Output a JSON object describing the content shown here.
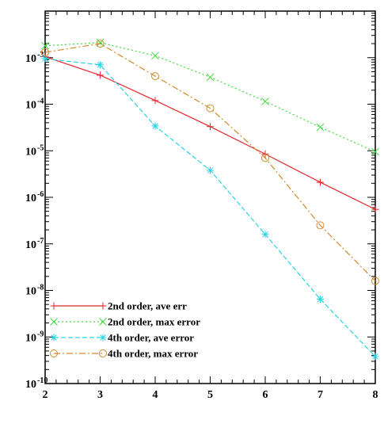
{
  "chart_data": {
    "type": "line",
    "title": "",
    "xlabel": "",
    "ylabel": "",
    "x": [
      2,
      3,
      4,
      5,
      6,
      7,
      8
    ],
    "xlim": [
      2,
      8
    ],
    "ylim": [
      1e-10,
      0.01
    ],
    "yscale": "log",
    "grid": false,
    "legend_position": "bottom-left",
    "x_ticks": [
      "2",
      "3",
      "4",
      "5",
      "6",
      "7",
      "8"
    ],
    "y_ticks": [
      {
        "base": "10",
        "exp": "-10",
        "value": 1e-10
      },
      {
        "base": "10",
        "exp": "-9",
        "value": 1e-09
      },
      {
        "base": "10",
        "exp": "-8",
        "value": 1e-08
      },
      {
        "base": "10",
        "exp": "-7",
        "value": 1e-07
      },
      {
        "base": "10",
        "exp": "-6",
        "value": 1e-06
      },
      {
        "base": "10",
        "exp": "-5",
        "value": 1e-05
      },
      {
        "base": "10",
        "exp": "-4",
        "value": 0.0001
      },
      {
        "base": "10",
        "exp": "-3",
        "value": 0.001
      }
    ],
    "series": [
      {
        "name": "2nd order, ave err",
        "color": "#e8252a",
        "dash": "",
        "marker": "plus",
        "values": [
          0.00105,
          0.00042,
          0.00012,
          3.3e-05,
          8.5e-06,
          2.1e-06,
          5.5e-07
        ]
      },
      {
        "name": "2nd order, max error",
        "color": "#3ddc3d",
        "dash": "2,3",
        "marker": "x",
        "values": [
          0.0018,
          0.0021,
          0.0011,
          0.00038,
          0.000115,
          3.2e-05,
          9.5e-06
        ]
      },
      {
        "name": "4th order, ave error",
        "color": "#27d3e6",
        "dash": "6,3",
        "marker": "star",
        "values": [
          0.00095,
          0.0007,
          3.4e-05,
          3.8e-06,
          1.6e-07,
          6.5e-09,
          3.8e-10
        ]
      },
      {
        "name": "4th order, max error",
        "color": "#d08a2a",
        "dash": "8,3,2,3",
        "marker": "circle",
        "values": [
          0.0013,
          0.002,
          0.0004,
          8.2e-05,
          7e-06,
          2.5e-07,
          1.6e-08
        ]
      }
    ]
  }
}
